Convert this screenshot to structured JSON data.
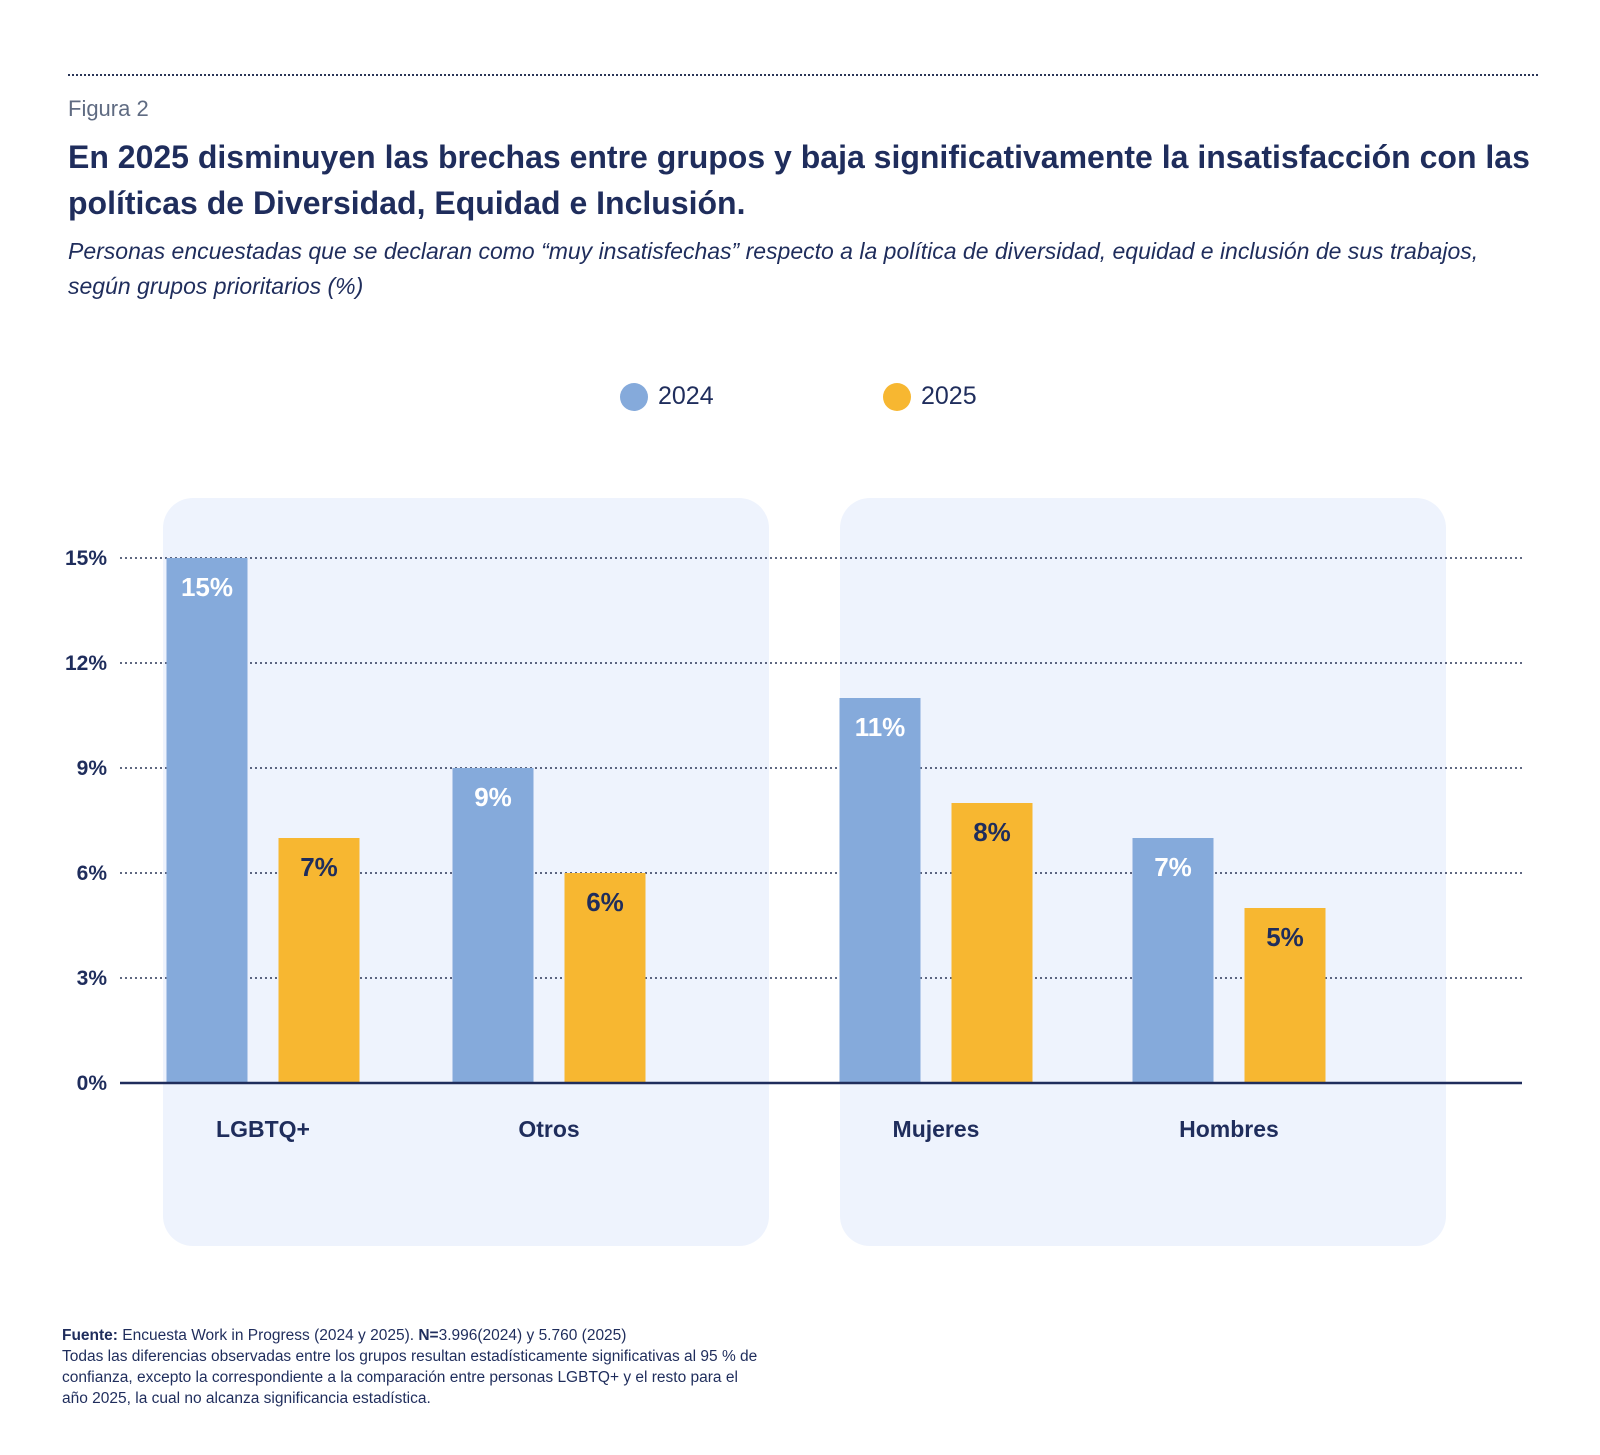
{
  "figure_label": "Figura 2",
  "title": "En 2025 disminuyen las brechas entre grupos y baja significativamente la insatisfacción con las políticas de Diversidad, Equidad e Inclusión.",
  "subtitle": "Personas encuestadas que se declaran como “muy insatisfechas” respecto a la política de diversidad, equidad e inclusión de sus trabajos, según grupos prioritarios (%)",
  "legend": [
    {
      "label": "2024",
      "color": "#85aadb"
    },
    {
      "label": "2025",
      "color": "#f7b731"
    }
  ],
  "colors": {
    "panel_bg": "#eef3fd",
    "text": "#1f2d5c",
    "bar_2024": "#85aadb",
    "bar_2025": "#f7b731"
  },
  "chart_data": {
    "type": "bar",
    "categories": [
      "LGBTQ+",
      "Otros",
      "Mujeres",
      "Hombres"
    ],
    "groups": [
      [
        "LGBTQ+",
        "Otros"
      ],
      [
        "Mujeres",
        "Hombres"
      ]
    ],
    "series": [
      {
        "name": "2024",
        "values": [
          15,
          9,
          11,
          7
        ],
        "labels": [
          "15%",
          "9%",
          "11%",
          "7%"
        ],
        "label_color": "#ffffff"
      },
      {
        "name": "2025",
        "values": [
          7,
          6,
          8,
          5
        ],
        "labels": [
          "7%",
          "6%",
          "8%",
          "5%"
        ],
        "label_color": "#1f2d5c"
      }
    ],
    "yticks": [
      0,
      3,
      6,
      9,
      12,
      15
    ],
    "ytick_labels": [
      "0%",
      "3%",
      "6%",
      "9%",
      "12%",
      "15%"
    ],
    "ylim": [
      0,
      15
    ],
    "grid": true,
    "legend_position": "top-center"
  },
  "source": {
    "label": "Fuente:",
    "text": " Encuesta Work in Progress (2024 y 2025). ",
    "n_label": "N=",
    "n_text": "3.996(2024) y 5.760 (2025)",
    "note": "Todas las diferencias observadas entre los grupos resultan estadísticamente significativas al 95 % de confianza, excepto la correspondiente a la comparación entre personas LGBTQ+ y el resto para el año 2025, la cual no alcanza significancia estadística."
  }
}
